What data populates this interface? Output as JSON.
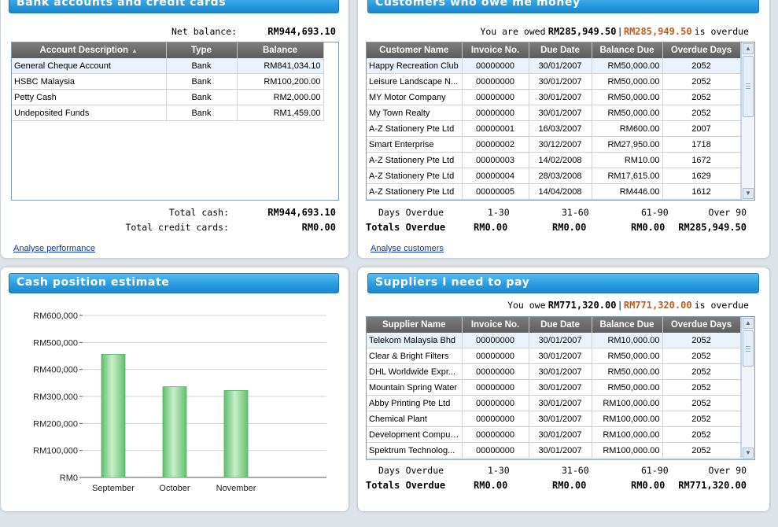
{
  "bank": {
    "title": "Bank accounts and credit cards",
    "net_balance_label": "Net balance:",
    "net_balance_value": "RM944,693.10",
    "columns": [
      "Account Description",
      "Type",
      "Balance"
    ],
    "rows": [
      {
        "desc": "General Cheque Account",
        "type": "Bank",
        "balance": "RM841,034.10"
      },
      {
        "desc": "HSBC Malaysia",
        "type": "Bank",
        "balance": "RM100,200.00"
      },
      {
        "desc": "Petty Cash",
        "type": "Bank",
        "balance": "RM2,000.00"
      },
      {
        "desc": "Undeposited Funds",
        "type": "Bank",
        "balance": "RM1,459.00"
      }
    ],
    "total_cash_label": "Total cash:",
    "total_cash_value": "RM944,693.10",
    "total_cc_label": "Total credit cards:",
    "total_cc_value": "RM0.00",
    "link": "Analyse performance"
  },
  "customers": {
    "title": "Customers who owe me money",
    "owed_label": "You are owed",
    "owed_value": "RM285,949.50",
    "sep": "|",
    "overdue_value": "RM285,949.50",
    "overdue_label": "is overdue",
    "columns": [
      "Customer Name",
      "Invoice No.",
      "Due Date",
      "Balance Due",
      "Overdue Days"
    ],
    "rows": [
      {
        "name": "Happy Recreation Club",
        "inv": "00000000",
        "due": "30/01/2007",
        "bal": "RM50,000.00",
        "days": "2052"
      },
      {
        "name": "Leisure Landscape N...",
        "inv": "00000000",
        "due": "30/01/2007",
        "bal": "RM50,000.00",
        "days": "2052"
      },
      {
        "name": "MY Motor Company",
        "inv": "00000000",
        "due": "30/01/2007",
        "bal": "RM50,000.00",
        "days": "2052"
      },
      {
        "name": "My Town Realty",
        "inv": "00000000",
        "due": "30/01/2007",
        "bal": "RM50,000.00",
        "days": "2052"
      },
      {
        "name": "A-Z Stationery Pte Ltd",
        "inv": "00000001",
        "due": "16/03/2007",
        "bal": "RM600.00",
        "days": "2007"
      },
      {
        "name": "Smart Enterprise",
        "inv": "00000002",
        "due": "30/12/2007",
        "bal": "RM27,950.00",
        "days": "1718"
      },
      {
        "name": "A-Z Stationery Pte Ltd",
        "inv": "00000003",
        "due": "14/02/2008",
        "bal": "RM10.00",
        "days": "1672"
      },
      {
        "name": "A-Z Stationery Pte Ltd",
        "inv": "00000004",
        "due": "28/03/2008",
        "bal": "RM17,615.00",
        "days": "1629"
      },
      {
        "name": "A-Z Stationery Pte Ltd",
        "inv": "00000005",
        "due": "14/04/2008",
        "bal": "RM446.00",
        "days": "1612"
      }
    ],
    "aging_label": "Days Overdue",
    "aging_buckets": [
      "1-30",
      "31-60",
      "61-90",
      "Over 90"
    ],
    "totals_label": "Totals Overdue",
    "totals": [
      "RM0.00",
      "RM0.00",
      "RM0.00",
      "RM285,949.50"
    ],
    "link": "Analyse customers"
  },
  "cash": {
    "title": "Cash position estimate"
  },
  "chart_data": {
    "type": "bar",
    "categories": [
      "September",
      "October",
      "November"
    ],
    "values": [
      456000,
      336000,
      322000
    ],
    "yticks": [
      "RM0",
      "RM100,000",
      "RM200,000",
      "RM300,000",
      "RM400,000",
      "RM500,000",
      "RM600,000"
    ],
    "ylim": [
      0,
      600000
    ],
    "grid": true,
    "bar_color": "#7fd08a"
  },
  "suppliers": {
    "title": "Suppliers I need to pay",
    "owe_label": "You owe",
    "owe_value": "RM771,320.00",
    "sep": "|",
    "overdue_value": "RM771,320.00",
    "overdue_label": "is overdue",
    "columns": [
      "Supplier Name",
      "Invoice No.",
      "Due Date",
      "Balance Due",
      "Overdue Days"
    ],
    "rows": [
      {
        "name": "Telekom Malaysia Bhd",
        "inv": "00000000",
        "due": "30/01/2007",
        "bal": "RM10,000.00",
        "days": "2052"
      },
      {
        "name": "Clear & Bright Filters",
        "inv": "00000000",
        "due": "30/01/2007",
        "bal": "RM50,000.00",
        "days": "2052"
      },
      {
        "name": "DHL Worldwide Expr...",
        "inv": "00000000",
        "due": "30/01/2007",
        "bal": "RM50,000.00",
        "days": "2052"
      },
      {
        "name": "Mountain Spring Water",
        "inv": "00000000",
        "due": "30/01/2007",
        "bal": "RM50,000.00",
        "days": "2052"
      },
      {
        "name": "Abby Printing Pte Ltd",
        "inv": "00000000",
        "due": "30/01/2007",
        "bal": "RM100,000.00",
        "days": "2052"
      },
      {
        "name": "Chemical Plant",
        "inv": "00000000",
        "due": "30/01/2007",
        "bal": "RM100,000.00",
        "days": "2052"
      },
      {
        "name": "Development Comput...",
        "inv": "00000000",
        "due": "30/01/2007",
        "bal": "RM100,000.00",
        "days": "2052"
      },
      {
        "name": "Spektrum Technolog...",
        "inv": "00000000",
        "due": "30/01/2007",
        "bal": "RM100,000.00",
        "days": "2052"
      }
    ],
    "aging_label": "Days Overdue",
    "aging_buckets": [
      "1-30",
      "31-60",
      "61-90",
      "Over 90"
    ],
    "totals_label": "Totals Overdue",
    "totals": [
      "RM0.00",
      "RM0.00",
      "RM0.00",
      "RM771,320.00"
    ]
  },
  "colors": {
    "title_bar": "#2a9de0",
    "overdue_text": "#c8591a",
    "header_row": "#6a6a6a",
    "link": "#1035c8"
  }
}
